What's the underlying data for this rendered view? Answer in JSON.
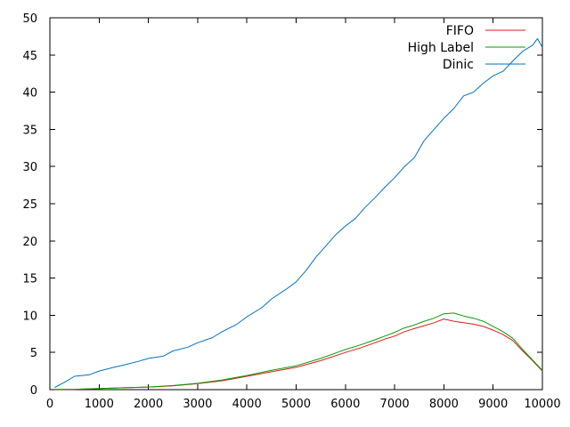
{
  "chart_data": {
    "type": "line",
    "title": "",
    "xlabel": "",
    "ylabel": "",
    "xlim": [
      0,
      10000
    ],
    "ylim": [
      0,
      50
    ],
    "xticks": [
      0,
      1000,
      2000,
      3000,
      4000,
      5000,
      6000,
      7000,
      8000,
      9000,
      10000
    ],
    "yticks": [
      0,
      5,
      10,
      15,
      20,
      25,
      30,
      35,
      40,
      45,
      50
    ],
    "grid": false,
    "legend_position": "top-right",
    "series": [
      {
        "name": "FIFO",
        "color": "#e31a1c",
        "x": [
          100,
          500,
          1000,
          1500,
          2000,
          2500,
          3000,
          3500,
          4000,
          4500,
          5000,
          5500,
          6000,
          6300,
          6600,
          6800,
          7000,
          7200,
          7400,
          7600,
          7800,
          8000,
          8200,
          8400,
          8600,
          8800,
          9000,
          9200,
          9400,
          9600,
          9800,
          10000
        ],
        "y": [
          0.02,
          0.05,
          0.15,
          0.25,
          0.35,
          0.5,
          0.8,
          1.2,
          1.8,
          2.4,
          3.0,
          3.9,
          5.0,
          5.6,
          6.3,
          6.8,
          7.2,
          7.8,
          8.2,
          8.6,
          9.0,
          9.5,
          9.2,
          9.0,
          8.8,
          8.5,
          8.0,
          7.4,
          6.6,
          5.2,
          3.9,
          2.5
        ]
      },
      {
        "name": "High Label",
        "color": "#00a000",
        "x": [
          100,
          500,
          1000,
          1500,
          2000,
          2500,
          3000,
          3500,
          4000,
          4500,
          5000,
          5500,
          6000,
          6300,
          6600,
          6800,
          7000,
          7200,
          7400,
          7600,
          7800,
          8000,
          8200,
          8400,
          8600,
          8800,
          9000,
          9200,
          9400,
          9600,
          9800,
          10000
        ],
        "y": [
          0.02,
          0.05,
          0.15,
          0.25,
          0.35,
          0.55,
          0.85,
          1.3,
          1.9,
          2.6,
          3.2,
          4.2,
          5.4,
          6.0,
          6.7,
          7.2,
          7.7,
          8.3,
          8.7,
          9.2,
          9.6,
          10.2,
          10.3,
          9.9,
          9.6,
          9.2,
          8.5,
          7.8,
          6.9,
          5.4,
          4.0,
          2.6
        ]
      },
      {
        "name": "Dinic",
        "color": "#0072c6",
        "x": [
          100,
          300,
          500,
          800,
          1000,
          1300,
          1500,
          1800,
          2000,
          2300,
          2500,
          2800,
          3000,
          3300,
          3500,
          3800,
          4000,
          4300,
          4500,
          4800,
          5000,
          5200,
          5400,
          5600,
          5800,
          6000,
          6200,
          6400,
          6600,
          6800,
          7000,
          7200,
          7400,
          7600,
          7800,
          8000,
          8200,
          8400,
          8600,
          8800,
          9000,
          9200,
          9400,
          9600,
          9800,
          9900,
          10000
        ],
        "y": [
          0.3,
          1.0,
          1.8,
          2.0,
          2.5,
          3.0,
          3.3,
          3.8,
          4.2,
          4.5,
          5.2,
          5.7,
          6.3,
          7.0,
          7.8,
          8.8,
          9.8,
          11.0,
          12.2,
          13.5,
          14.5,
          16.0,
          17.8,
          19.3,
          20.8,
          22.0,
          23.0,
          24.5,
          25.8,
          27.2,
          28.5,
          30.0,
          31.2,
          33.5,
          35.0,
          36.5,
          37.8,
          39.5,
          40.0,
          41.2,
          42.2,
          42.8,
          44.2,
          45.5,
          46.3,
          47.2,
          46.0
        ]
      }
    ]
  }
}
